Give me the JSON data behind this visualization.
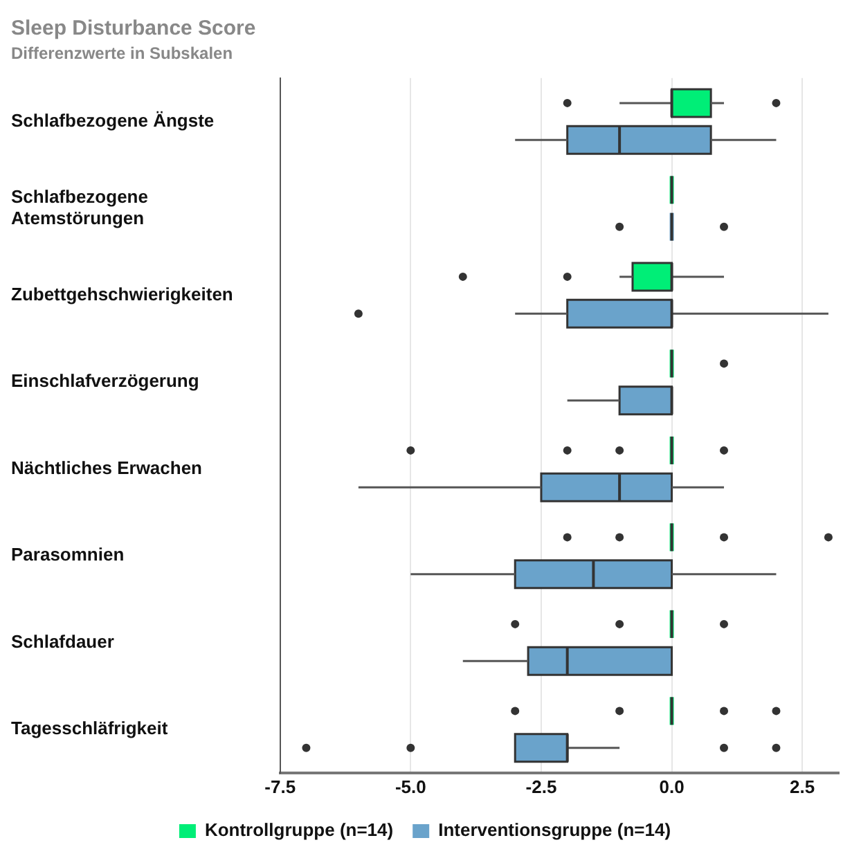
{
  "chart_data": {
    "type": "box",
    "title": "Sleep Disturbance Score",
    "subtitle": "Differenzwerte in Subskalen",
    "orientation": "horizontal",
    "categories": [
      "Schlafbezogene Ängste",
      "Schlafbezogene Atemstörungen",
      "Zubettgehschwierigkeiten",
      "Einschlafverzögerung",
      "Nächtliches Erwachen",
      "Parasomnien",
      "Schlafdauer",
      "Tagesschläfrigkeit"
    ],
    "series": [
      {
        "name": "Kontrollgruppe (n=14)",
        "color": "#00ee77",
        "boxes": [
          {
            "low": -1,
            "q1": 0,
            "median": 0,
            "q3": 0.75,
            "high": 1,
            "outliers": [
              -2,
              2
            ]
          },
          {
            "low": 0,
            "q1": 0,
            "median": 0,
            "q3": 0,
            "high": 0
          },
          {
            "low": -1,
            "q1": -0.75,
            "median": 0,
            "q3": 0,
            "high": 1,
            "outliers": [
              -4,
              -2
            ]
          },
          {
            "low": 0,
            "q1": 0,
            "median": 0,
            "q3": 0,
            "high": 0,
            "outliers": [
              1
            ]
          },
          {
            "low": 0,
            "q1": 0,
            "median": 0,
            "q3": 0,
            "high": 0,
            "outliers": [
              -5,
              -2,
              -1,
              1
            ]
          },
          {
            "low": 0,
            "q1": 0,
            "median": 0,
            "q3": 0,
            "high": 0,
            "outliers": [
              -2,
              -1,
              1,
              3
            ]
          },
          {
            "low": 0,
            "q1": 0,
            "median": 0,
            "q3": 0,
            "high": 0,
            "outliers": [
              -3,
              -1,
              1
            ]
          },
          {
            "low": 0,
            "q1": 0,
            "median": 0,
            "q3": 0,
            "high": 0,
            "outliers": [
              -3,
              -1,
              1,
              2
            ]
          }
        ]
      },
      {
        "name": "Interventionsgruppe (n=14)",
        "color": "#6aa3cb",
        "boxes": [
          {
            "low": -3,
            "q1": -2,
            "median": -1,
            "q3": 0.75,
            "high": 2
          },
          {
            "low": 0,
            "q1": 0,
            "median": 0,
            "q3": 0,
            "high": 0,
            "outliers": [
              -1,
              1
            ]
          },
          {
            "low": -3,
            "q1": -2,
            "median": 0,
            "q3": 0,
            "high": 3,
            "outliers": [
              -6
            ]
          },
          {
            "low": -2,
            "q1": -1,
            "median": 0,
            "q3": 0,
            "high": 0
          },
          {
            "low": -6,
            "q1": -2.5,
            "median": -1,
            "q3": 0,
            "high": 1
          },
          {
            "low": -5,
            "q1": -3,
            "median": -1.5,
            "q3": 0,
            "high": 2
          },
          {
            "low": -4,
            "q1": -2.75,
            "median": -2,
            "q3": 0,
            "high": 0
          },
          {
            "low": -3,
            "q1": -3,
            "median": -2,
            "q3": -2,
            "high": -1,
            "outliers": [
              -7,
              -5,
              1,
              2
            ]
          }
        ]
      }
    ],
    "xlim": [
      -7.5,
      3.2
    ],
    "xticks": [
      {
        "value": -7.5,
        "label": "-7.5"
      },
      {
        "value": -5,
        "label": "-5.0"
      },
      {
        "value": -2.5,
        "label": "-2.5"
      },
      {
        "value": 0,
        "label": "0.0"
      },
      {
        "value": 2.5,
        "label": "2.5"
      }
    ],
    "grid": "x",
    "legend": "bottom"
  }
}
